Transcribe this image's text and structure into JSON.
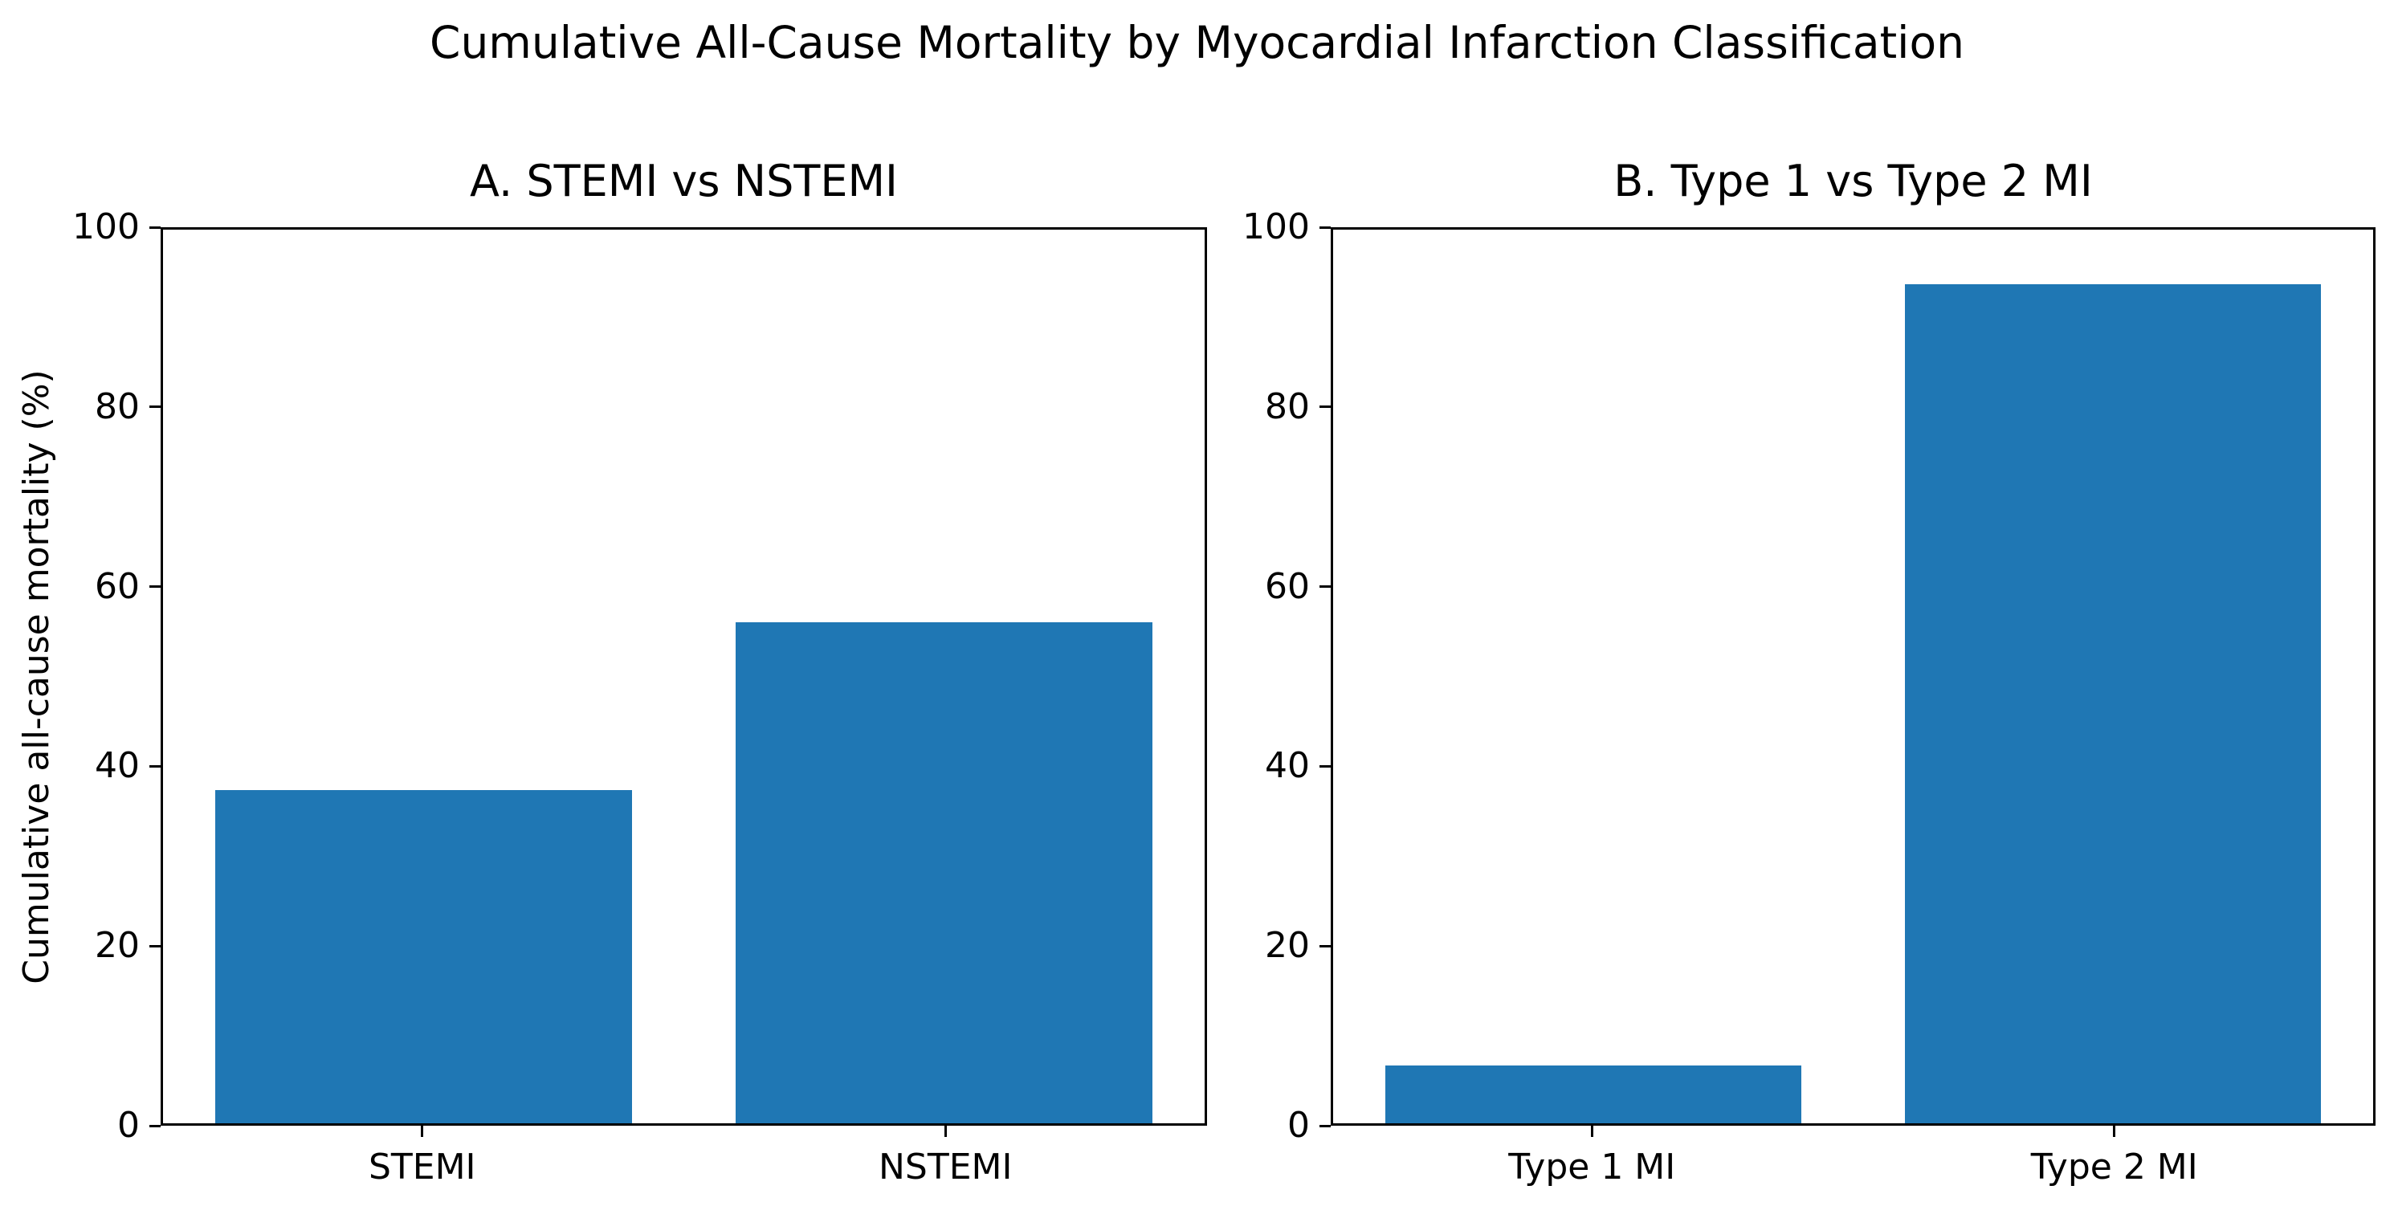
{
  "figure": {
    "suptitle": "Cumulative All-Cause Mortality by Myocardial Infarction Classification",
    "background_color": "#ffffff",
    "text_color": "#000000",
    "bar_color": "#1f77b4"
  },
  "chart_data": [
    {
      "type": "bar",
      "title": "A. STEMI vs NSTEMI",
      "categories": [
        "STEMI",
        "NSTEMI"
      ],
      "values": [
        37.3,
        56.1
      ],
      "ylabel": "Cumulative all-cause mortality (%)",
      "xlabel": "",
      "ylim": [
        0,
        100
      ],
      "yticks": [
        0,
        20,
        40,
        60,
        80,
        100
      ],
      "grid": "off",
      "legend": "none",
      "bar_color": "#1f77b4"
    },
    {
      "type": "bar",
      "title": "B. Type 1 vs Type 2 MI",
      "categories": [
        "Type 1 MI",
        "Type 2 MI"
      ],
      "values": [
        6.5,
        93.9
      ],
      "ylabel": "",
      "xlabel": "",
      "ylim": [
        0,
        100
      ],
      "yticks": [
        0,
        20,
        40,
        60,
        80,
        100
      ],
      "grid": "off",
      "legend": "none",
      "bar_color": "#1f77b4"
    }
  ]
}
